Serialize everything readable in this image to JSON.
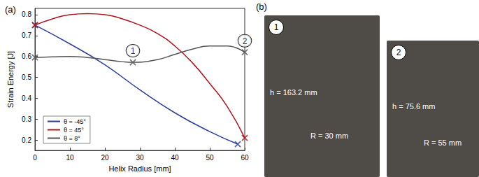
{
  "chart_data": {
    "type": "line",
    "title": "(a)",
    "x_label": "Helix Radius [mm]",
    "y_label": "Strain Energy [J]",
    "xlim": [
      0,
      60
    ],
    "xticks": [
      0,
      10,
      20,
      30,
      40,
      50,
      60
    ],
    "ylim": [
      0.15,
      0.83
    ],
    "yticks": [
      0.2,
      0.3,
      0.4,
      0.5,
      0.6,
      0.7,
      0.8
    ],
    "grid": false,
    "legend": "lower left",
    "series": [
      {
        "name": "θ = -45°",
        "color": "#2b3f9e",
        "line_style": "solid",
        "marker": "x",
        "x": [
          0,
          10,
          20,
          30,
          40,
          50,
          58
        ],
        "values": [
          0.75,
          0.66,
          0.56,
          0.44,
          0.33,
          0.24,
          0.18
        ],
        "marked_points": [
          [
            0,
            0.75
          ],
          [
            58,
            0.18
          ]
        ]
      },
      {
        "name": "θ = 45°",
        "color": "#b0141c",
        "line_style": "solid",
        "marker": "x",
        "x": [
          0,
          5,
          10,
          15,
          20,
          25,
          30,
          35,
          40,
          45,
          50,
          55,
          60
        ],
        "values": [
          0.75,
          0.78,
          0.8,
          0.805,
          0.8,
          0.78,
          0.75,
          0.71,
          0.65,
          0.57,
          0.47,
          0.36,
          0.21
        ],
        "marked_points": [
          [
            0,
            0.75
          ],
          [
            60,
            0.21
          ]
        ]
      },
      {
        "name": "θ = 8°",
        "color": "#555555",
        "line_style": "solid",
        "marker": "x",
        "x": [
          0,
          5,
          10,
          15,
          20,
          25,
          28,
          35,
          40,
          45,
          50,
          55,
          60
        ],
        "values": [
          0.595,
          0.598,
          0.6,
          0.595,
          0.585,
          0.575,
          0.572,
          0.585,
          0.61,
          0.635,
          0.65,
          0.65,
          0.62
        ],
        "marked_points": [
          [
            0,
            0.595
          ],
          [
            28,
            0.572
          ],
          [
            60,
            0.62
          ]
        ]
      }
    ],
    "annotations": [
      {
        "text": "1",
        "x": 28,
        "y": 0.572
      },
      {
        "text": "2",
        "x": 60,
        "y": 0.62
      }
    ]
  },
  "photos": {
    "label": "(b)",
    "items": [
      {
        "number": "1",
        "height_label": "h = 163.2 mm",
        "radius_label": "R = 30 mm"
      },
      {
        "number": "2",
        "height_label": "h = 75.6 mm",
        "radius_label": "R = 55 mm"
      }
    ]
  }
}
